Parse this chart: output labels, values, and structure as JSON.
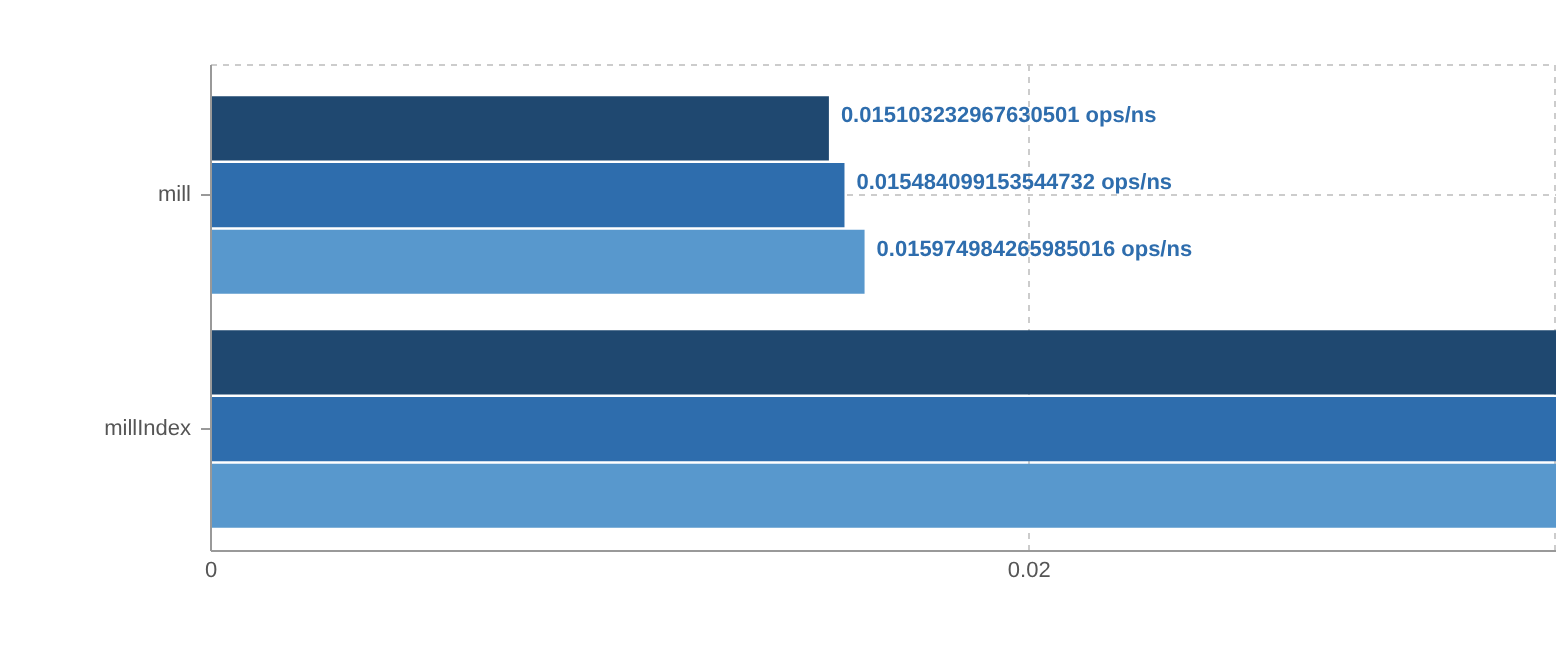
{
  "chart_data": {
    "type": "bar",
    "orientation": "horizontal",
    "categories": [
      "mill",
      "millIndex"
    ],
    "series": [
      {
        "color": "#1f4870",
        "values": [
          0.015103232967630501,
          0.0329
        ],
        "value_labels": [
          "0.015103232967630501 ops/ns",
          null
        ]
      },
      {
        "color": "#2e6dad",
        "values": [
          0.015484099153544732,
          0.0329
        ],
        "value_labels": [
          "0.015484099153544732 ops/ns",
          null
        ]
      },
      {
        "color": "#5898cd",
        "values": [
          0.015974984265985016,
          0.0329
        ],
        "value_labels": [
          "0.015974984265985016 ops/ns",
          null
        ]
      }
    ],
    "xlim": [
      0,
      0.0329
    ],
    "xticks": [
      0,
      0.02
    ],
    "grid": true
  }
}
